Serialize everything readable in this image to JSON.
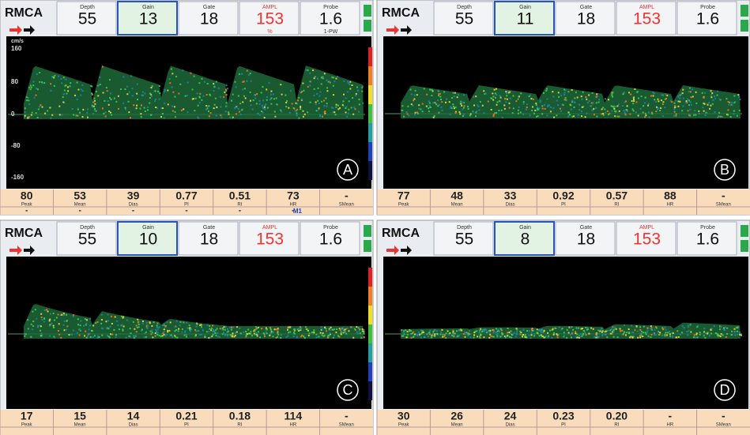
{
  "panels": [
    {
      "label": "A",
      "vessel": "RMCA",
      "header": [
        {
          "name": "Depth",
          "value": "55"
        },
        {
          "name": "Gain",
          "value": "13"
        },
        {
          "name": "Gate",
          "value": "18"
        },
        {
          "name": "AMPL",
          "value": "153",
          "sub": "%"
        },
        {
          "name": "Probe",
          "value": "1.6",
          "sub": "1-PW"
        }
      ],
      "axis": [
        "cm/s",
        "160",
        "80",
        "0",
        "-80",
        "-160"
      ],
      "metrics": [
        {
          "name": "Peak",
          "value": "80",
          "sub": "-"
        },
        {
          "name": "Mean",
          "value": "53",
          "sub": "-"
        },
        {
          "name": "Dias",
          "value": "39",
          "sub": "-"
        },
        {
          "name": "PI",
          "value": "0.77",
          "sub": "-"
        },
        {
          "name": "RI",
          "value": "0.51",
          "sub": "-"
        },
        {
          "name": "HR",
          "value": "73",
          "sub": "-"
        },
        {
          "name": "SMean",
          "value": "-"
        }
      ],
      "footer": "M1"
    },
    {
      "label": "B",
      "vessel": "RMCA",
      "header": [
        {
          "name": "Depth",
          "value": "55"
        },
        {
          "name": "Gain",
          "value": "11"
        },
        {
          "name": "Gate",
          "value": "18"
        },
        {
          "name": "AMPL",
          "value": "153"
        },
        {
          "name": "Probe",
          "value": "1.6"
        }
      ],
      "metrics": [
        {
          "name": "Peak",
          "value": "77"
        },
        {
          "name": "Mean",
          "value": "48"
        },
        {
          "name": "Dias",
          "value": "33"
        },
        {
          "name": "PI",
          "value": "0.92"
        },
        {
          "name": "RI",
          "value": "0.57"
        },
        {
          "name": "HR",
          "value": "88"
        },
        {
          "name": "SMean",
          "value": "-"
        }
      ]
    },
    {
      "label": "C",
      "vessel": "RMCA",
      "header": [
        {
          "name": "Depth",
          "value": "55"
        },
        {
          "name": "Gain",
          "value": "10"
        },
        {
          "name": "Gate",
          "value": "18"
        },
        {
          "name": "AMPL",
          "value": "153"
        },
        {
          "name": "Probe",
          "value": "1.6"
        }
      ],
      "metrics": [
        {
          "name": "Peak",
          "value": "17"
        },
        {
          "name": "Mean",
          "value": "15"
        },
        {
          "name": "Dias",
          "value": "14"
        },
        {
          "name": "PI",
          "value": "0.21"
        },
        {
          "name": "RI",
          "value": "0.18"
        },
        {
          "name": "HR",
          "value": "114"
        },
        {
          "name": "SMean",
          "value": "-"
        }
      ]
    },
    {
      "label": "D",
      "vessel": "RMCA",
      "header": [
        {
          "name": "Depth",
          "value": "55"
        },
        {
          "name": "Gain",
          "value": "8"
        },
        {
          "name": "Gate",
          "value": "18"
        },
        {
          "name": "AMPL",
          "value": "153"
        },
        {
          "name": "Probe",
          "value": "1.6"
        }
      ],
      "metrics": [
        {
          "name": "Peak",
          "value": "30"
        },
        {
          "name": "Mean",
          "value": "26"
        },
        {
          "name": "Dias",
          "value": "24"
        },
        {
          "name": "PI",
          "value": "0.23"
        },
        {
          "name": "RI",
          "value": "0.20"
        },
        {
          "name": "HR",
          "value": "-"
        },
        {
          "name": "SMean",
          "value": "-"
        }
      ]
    }
  ]
}
